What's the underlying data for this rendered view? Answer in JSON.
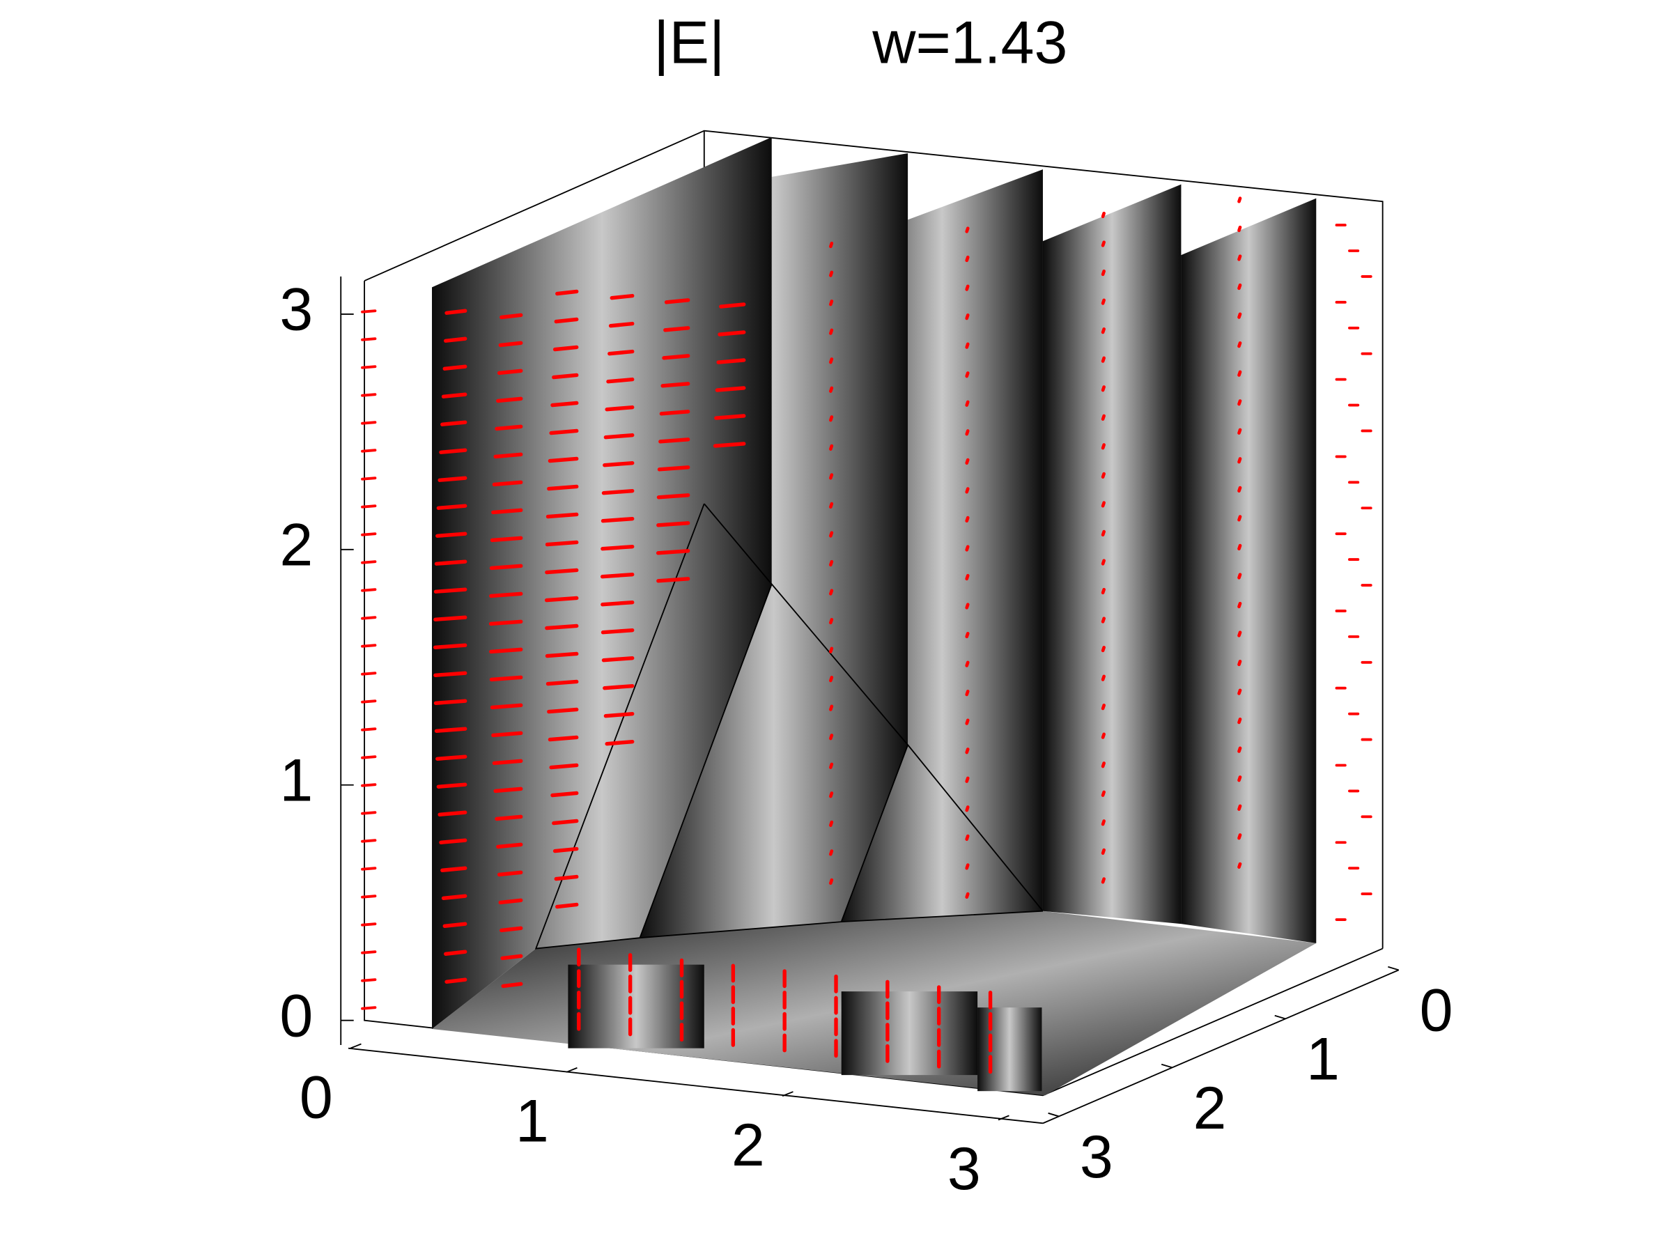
{
  "chart_data": {
    "type": "slice3d",
    "title": "|E|",
    "annotation": "w=1.43",
    "xlim": [
      0,
      3.1416
    ],
    "xticks": [
      0,
      1,
      2,
      3
    ],
    "ylim": [
      0,
      3.1416
    ],
    "yticks": [
      0,
      1,
      2,
      3
    ],
    "zlim": [
      0,
      3.1416
    ],
    "zticks": [
      0,
      1,
      2,
      3
    ],
    "color": "#ff0000"
  }
}
